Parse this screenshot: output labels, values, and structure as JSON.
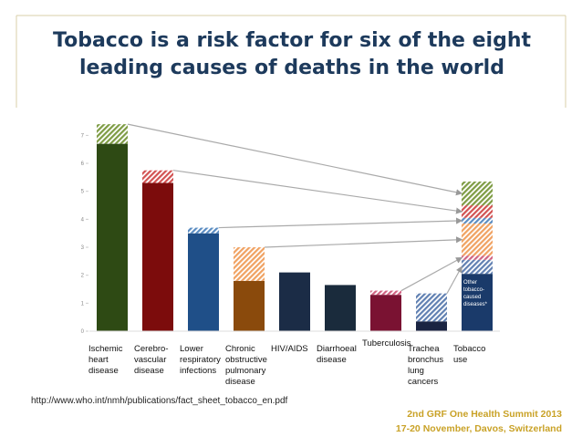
{
  "slide": {
    "title": "Tobacco is a risk factor for six of the eight leading causes of deaths in the world",
    "source": "http://www.who.int/nmh/publications/fact_sheet_tobacco_en.pdf",
    "footer": [
      "2nd GRF One Health Summit 2013",
      "17-20 November, Davos, Switzerland"
    ]
  },
  "chart_data": {
    "type": "bar",
    "categories": [
      "Ischemic heart disease",
      "Cerebro-vascular disease",
      "Lower respiratory infections",
      "Chronic obstructive pulmonary disease",
      "HIV/AIDS",
      "Diarrhoeal disease",
      "Tuberculosis",
      "Trachea bronchus lung cancers",
      "Tobacco use"
    ],
    "colors": [
      "#2e4a14",
      "#7c0c0c",
      "#1f4f88",
      "#8a4a0c",
      "#1b2c46",
      "#1a2b3c",
      "#7a1232",
      "#1a2442",
      "#1a3a6a"
    ],
    "hatch_colors": [
      "#7e9c44",
      "#d25252",
      "#5a8cc2",
      "#f0a262",
      "#6a86b0",
      "#6a86b0",
      "#d06282",
      "#6080b2",
      "#6080b2"
    ],
    "series": [
      {
        "values": [
          6.7,
          5.3,
          3.5,
          1.8,
          2.1,
          1.65,
          1.3,
          0.35,
          null
        ]
      },
      {
        "values": [
          0.7,
          0.45,
          0.2,
          1.2,
          null,
          null,
          0.15,
          1.0,
          null
        ],
        "hatched": true
      }
    ],
    "stack": {
      "values": [
        2.05,
        0.5,
        0.15,
        1.15,
        0.2,
        0.45,
        0.85
      ],
      "colors": [
        "#1a3a6a",
        "#6080b2",
        "#d06282",
        "#f0a262",
        "#5a8cc2",
        "#d25252",
        "#7e9c44"
      ],
      "note": "Other tobacco-caused diseases*"
    },
    "ylim": [
      0,
      7.6
    ],
    "yticks": [
      0,
      1,
      2,
      3,
      4,
      5,
      6,
      7
    ]
  }
}
